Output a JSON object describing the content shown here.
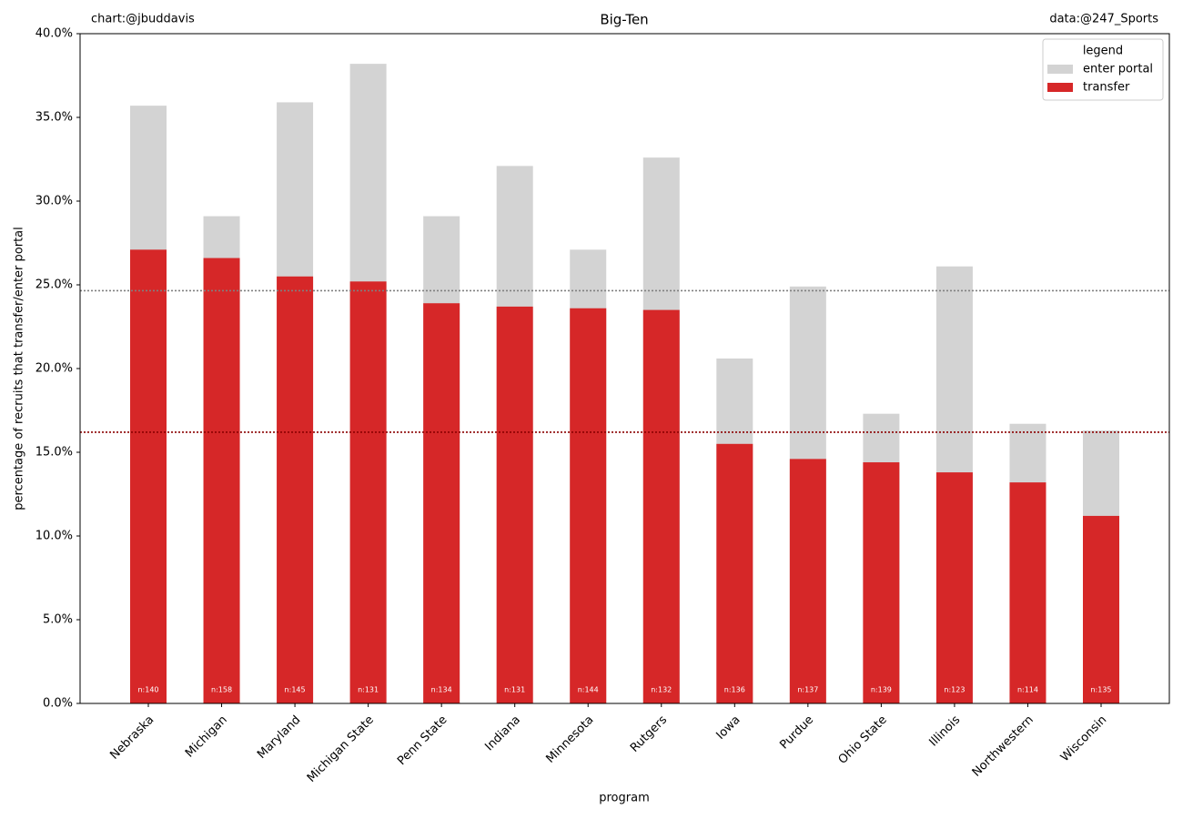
{
  "chart_data": {
    "type": "bar",
    "overlap": true,
    "title": "Big-Ten",
    "credit_left": "chart:@jbuddavis",
    "credit_right": "data:@247_Sports",
    "xlabel": "program",
    "ylabel": "percentage of recruits that transfer/enter portal",
    "categories": [
      "Nebraska",
      "Michigan",
      "Maryland",
      "Michigan State",
      "Penn State",
      "Indiana",
      "Minnesota",
      "Rutgers",
      "Iowa",
      "Purdue",
      "Ohio State",
      "Illinois",
      "Northwestern",
      "Wisconsin"
    ],
    "series": [
      {
        "name": "enter portal",
        "color": "#d3d3d3",
        "values": [
          35.7,
          29.1,
          35.9,
          38.2,
          29.1,
          32.1,
          27.1,
          32.6,
          20.6,
          24.9,
          17.3,
          26.1,
          16.7,
          16.3
        ]
      },
      {
        "name": "transfer",
        "color": "#d62728",
        "values": [
          27.1,
          26.6,
          25.5,
          25.2,
          23.9,
          23.7,
          23.6,
          23.5,
          15.5,
          14.6,
          14.4,
          13.8,
          13.2,
          11.2
        ]
      }
    ],
    "bar_labels": [
      "n:140",
      "n:158",
      "n:145",
      "n:131",
      "n:134",
      "n:131",
      "n:144",
      "n:132",
      "n:136",
      "n:137",
      "n:139",
      "n:123",
      "n:114",
      "n:135"
    ],
    "reference_lines": [
      {
        "value": 24.65,
        "color": "#808080"
      },
      {
        "value": 16.2,
        "color": "#8b0000"
      }
    ],
    "ylim": [
      0,
      40
    ],
    "yticks": [
      {
        "value": 0,
        "label": "0.0%"
      },
      {
        "value": 5,
        "label": "5.0%"
      },
      {
        "value": 10,
        "label": "10.0%"
      },
      {
        "value": 15,
        "label": "15.0%"
      },
      {
        "value": 20,
        "label": "20.0%"
      },
      {
        "value": 25,
        "label": "25.0%"
      },
      {
        "value": 30,
        "label": "30.0%"
      },
      {
        "value": 35,
        "label": "35.0%"
      },
      {
        "value": 40,
        "label": "40.0%"
      }
    ],
    "legend": {
      "title": "legend",
      "loc": "upper right"
    }
  }
}
